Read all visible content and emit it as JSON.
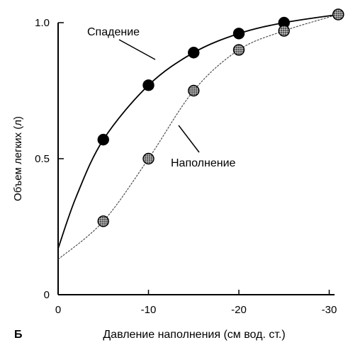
{
  "chart_data": {
    "type": "line",
    "xlabel": "Давление наполнения (см вод. ст.)",
    "ylabel": "Объем легких (л)",
    "panel_label": "Б",
    "xlim": [
      0,
      -30
    ],
    "ylim": [
      0,
      1.0
    ],
    "x_ticks": [
      0,
      -10,
      -20,
      -30
    ],
    "x_tick_labels": [
      "0",
      "-10",
      "-20",
      "-30"
    ],
    "y_ticks": [
      0,
      0.5,
      1.0
    ],
    "y_tick_labels": [
      "0",
      "0.5",
      "1.0"
    ],
    "grid": false,
    "series": [
      {
        "name": "Спадение",
        "color": "#000000",
        "marker": "filled-circle",
        "points": [
          {
            "x": -5,
            "y": 0.57
          },
          {
            "x": -10,
            "y": 0.77
          },
          {
            "x": -15,
            "y": 0.89
          },
          {
            "x": -20,
            "y": 0.96
          },
          {
            "x": -25,
            "y": 1.0
          },
          {
            "x": -31,
            "y": 1.03
          }
        ],
        "curve": [
          {
            "x": 0,
            "y": 0.17
          },
          {
            "x": -2,
            "y": 0.36
          },
          {
            "x": -5,
            "y": 0.57
          },
          {
            "x": -10,
            "y": 0.77
          },
          {
            "x": -15,
            "y": 0.89
          },
          {
            "x": -20,
            "y": 0.96
          },
          {
            "x": -25,
            "y": 1.0
          },
          {
            "x": -31,
            "y": 1.03
          }
        ]
      },
      {
        "name": "Наполнение",
        "color": "#555555",
        "marker": "stippled-circle",
        "points": [
          {
            "x": -5,
            "y": 0.27
          },
          {
            "x": -10,
            "y": 0.5
          },
          {
            "x": -15,
            "y": 0.75
          },
          {
            "x": -20,
            "y": 0.9
          },
          {
            "x": -25,
            "y": 0.97
          },
          {
            "x": -31,
            "y": 1.03
          }
        ],
        "curve": [
          {
            "x": 0,
            "y": 0.13
          },
          {
            "x": -5,
            "y": 0.27
          },
          {
            "x": -10,
            "y": 0.5
          },
          {
            "x": -15,
            "y": 0.75
          },
          {
            "x": -20,
            "y": 0.9
          },
          {
            "x": -25,
            "y": 0.97
          },
          {
            "x": -31,
            "y": 1.03
          }
        ]
      }
    ],
    "annotations": [
      {
        "text": "Спадение",
        "series": "Спадение"
      },
      {
        "text": "Наполнение",
        "series": "Наполнение"
      }
    ]
  }
}
